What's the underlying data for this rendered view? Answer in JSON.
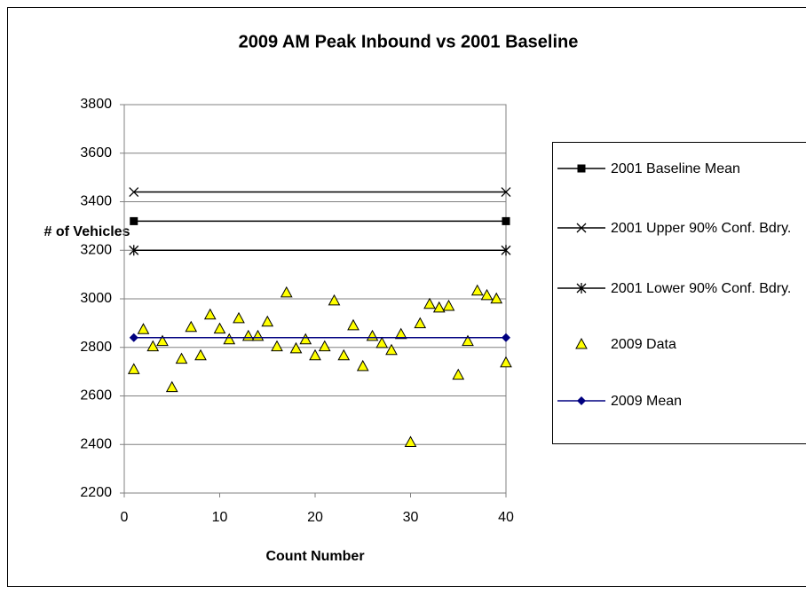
{
  "chart_data": {
    "type": "line",
    "title": "2009 AM Peak Inbound vs 2001 Baseline",
    "x_label": "Count Number",
    "y_label": "# of Vehicles",
    "xlim": [
      0,
      40
    ],
    "xticks": [
      0,
      10,
      20,
      30,
      40
    ],
    "ylim": [
      2200,
      3800
    ],
    "yticks": [
      2200,
      2400,
      2600,
      2800,
      3000,
      3200,
      3400,
      3600,
      3800
    ],
    "grid": true,
    "legend": "right",
    "series": [
      {
        "name": "2001 Baseline Mean",
        "color": "#000000",
        "marker": "square",
        "line": true,
        "x": [
          1,
          40
        ],
        "values": [
          3320,
          3320
        ]
      },
      {
        "name": "2001 Upper 90% Conf. Bdry.",
        "color": "#000000",
        "marker": "x",
        "line": true,
        "x": [
          1,
          40
        ],
        "values": [
          3440,
          3440
        ]
      },
      {
        "name": "2001 Lower 90% Conf. Bdry.",
        "color": "#000000",
        "marker": "asterisk",
        "line": true,
        "x": [
          1,
          40
        ],
        "values": [
          3200,
          3200
        ]
      },
      {
        "name": "2009 Data",
        "color": "#ffff00",
        "marker": "triangle",
        "line": false,
        "x": [
          1,
          2,
          3,
          4,
          5,
          6,
          7,
          8,
          9,
          10,
          11,
          12,
          13,
          14,
          15,
          16,
          17,
          18,
          19,
          20,
          21,
          22,
          23,
          24,
          25,
          26,
          27,
          28,
          29,
          30,
          31,
          32,
          33,
          34,
          35,
          36,
          37,
          38,
          39,
          40
        ],
        "values": [
          2710,
          2875,
          2804,
          2826,
          2636,
          2753,
          2884,
          2767,
          2935,
          2877,
          2833,
          2920,
          2847,
          2847,
          2906,
          2804,
          3026,
          2796,
          2833,
          2767,
          2804,
          2993,
          2767,
          2891,
          2723,
          2847,
          2818,
          2789,
          2855,
          2410,
          2899,
          2979,
          2964,
          2971,
          2687,
          2826,
          3034,
          3015,
          3001,
          2738
        ]
      },
      {
        "name": "2009 Mean",
        "color": "#000080",
        "marker": "diamond",
        "line": true,
        "x": [
          1,
          40
        ],
        "values": [
          2840,
          2840
        ]
      }
    ]
  }
}
